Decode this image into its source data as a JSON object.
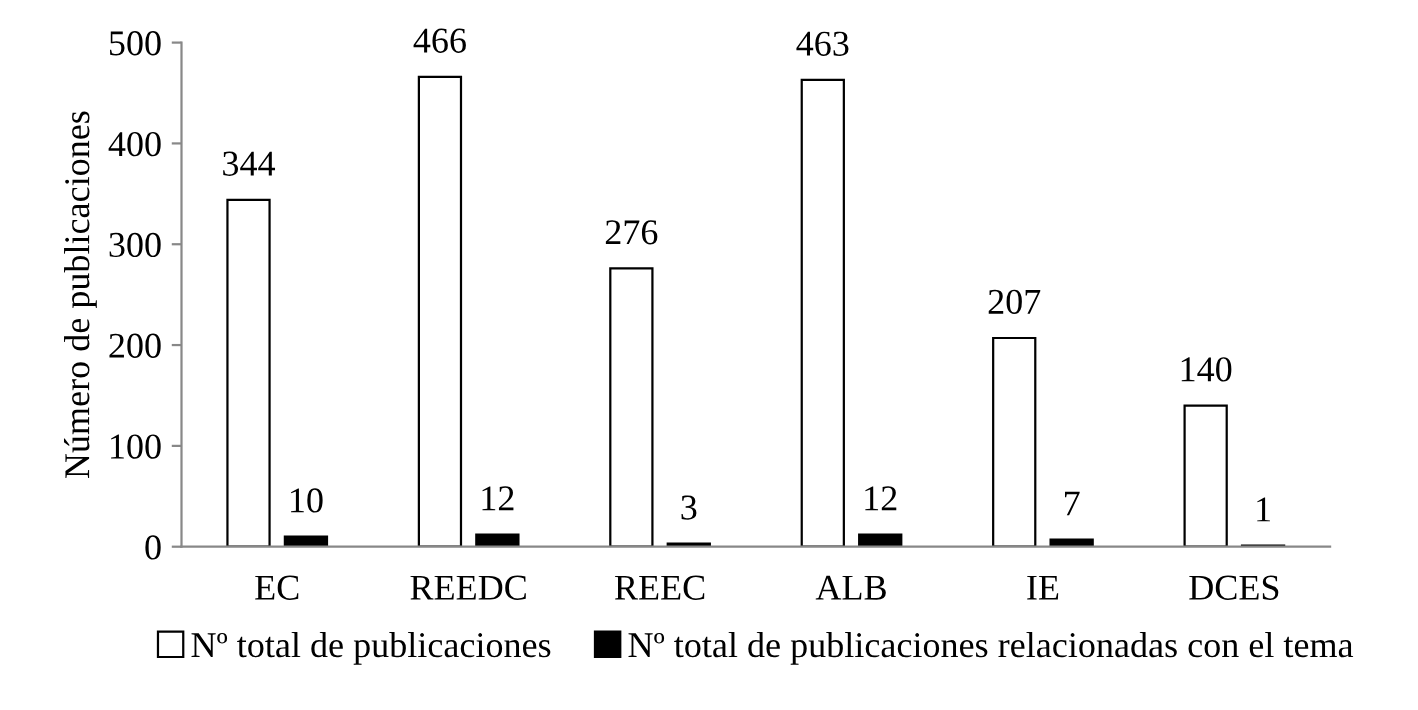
{
  "chart_data": {
    "type": "bar",
    "ylabel": "Número de publicaciones",
    "categories": [
      "EC",
      "REEDC",
      "REEC",
      "ALB",
      "IE",
      "DCES"
    ],
    "series": [
      {
        "name": "Nº total de publicaciones",
        "color": "#ffffff",
        "values": [
          344,
          466,
          276,
          463,
          207,
          140
        ]
      },
      {
        "name": "Nº total de publicaciones relacionadas con el tema",
        "color": "#000000",
        "values": [
          10,
          12,
          3,
          12,
          7,
          1
        ]
      }
    ],
    "ylim": [
      0,
      500
    ],
    "yticks": [
      0,
      100,
      200,
      300,
      400,
      500
    ],
    "data_labels": true,
    "legend": "bottom",
    "grid": false
  }
}
